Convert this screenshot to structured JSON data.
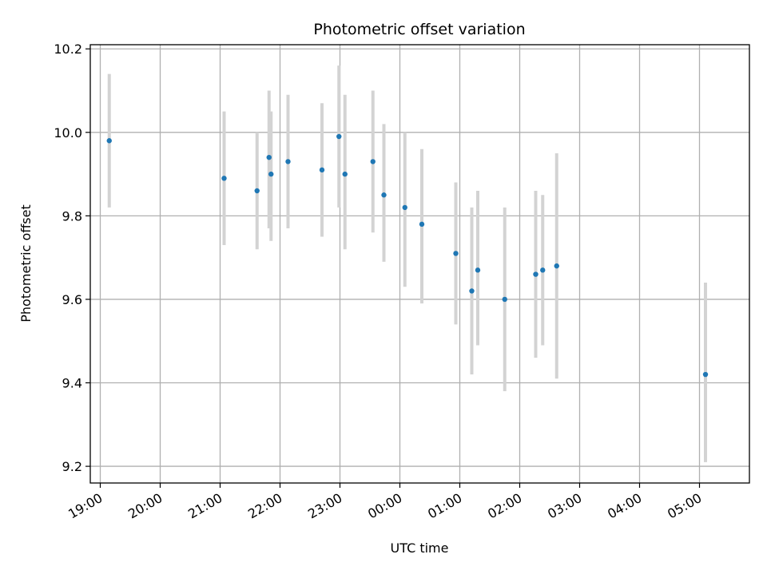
{
  "chart_data": {
    "type": "scatter",
    "title": "Photometric offset variation",
    "xlabel": "UTC time",
    "ylabel": "Photometric offset",
    "x_axis": {
      "kind": "time",
      "range": [
        "18:50",
        "05:50"
      ],
      "ticks": [
        "19:00",
        "20:00",
        "21:00",
        "22:00",
        "23:00",
        "00:00",
        "01:00",
        "02:00",
        "03:00",
        "04:00",
        "05:00"
      ]
    },
    "y_axis": {
      "range": [
        9.16,
        10.21
      ],
      "ticks": [
        "9.2",
        "9.4",
        "9.6",
        "9.8",
        "10.0",
        "10.2"
      ]
    },
    "grid": true,
    "colors": {
      "point": "#1f77b4",
      "errorbar": "#d3d3d3"
    },
    "series": [
      {
        "points": [
          {
            "x": "19:09",
            "y": 9.98,
            "yerr_low": 9.82,
            "yerr_high": 10.14
          },
          {
            "x": "21:04",
            "y": 9.89,
            "yerr_low": 9.73,
            "yerr_high": 10.05
          },
          {
            "x": "21:37",
            "y": 9.86,
            "yerr_low": 9.72,
            "yerr_high": 10.0
          },
          {
            "x": "21:49",
            "y": 9.94,
            "yerr_low": 9.77,
            "yerr_high": 10.1
          },
          {
            "x": "21:51",
            "y": 9.9,
            "yerr_low": 9.74,
            "yerr_high": 10.05
          },
          {
            "x": "22:08",
            "y": 9.93,
            "yerr_low": 9.77,
            "yerr_high": 10.09
          },
          {
            "x": "22:42",
            "y": 9.91,
            "yerr_low": 9.75,
            "yerr_high": 10.07
          },
          {
            "x": "22:59",
            "y": 9.99,
            "yerr_low": 9.82,
            "yerr_high": 10.16
          },
          {
            "x": "23:05",
            "y": 9.9,
            "yerr_low": 9.72,
            "yerr_high": 10.09
          },
          {
            "x": "23:33",
            "y": 9.93,
            "yerr_low": 9.76,
            "yerr_high": 10.1
          },
          {
            "x": "23:44",
            "y": 9.85,
            "yerr_low": 9.69,
            "yerr_high": 10.02
          },
          {
            "x": "00:05",
            "y": 9.82,
            "yerr_low": 9.63,
            "yerr_high": 10.0
          },
          {
            "x": "00:22",
            "y": 9.78,
            "yerr_low": 9.59,
            "yerr_high": 9.96
          },
          {
            "x": "00:56",
            "y": 9.71,
            "yerr_low": 9.54,
            "yerr_high": 9.88
          },
          {
            "x": "01:12",
            "y": 9.62,
            "yerr_low": 9.42,
            "yerr_high": 9.82
          },
          {
            "x": "01:18",
            "y": 9.67,
            "yerr_low": 9.49,
            "yerr_high": 9.86
          },
          {
            "x": "01:45",
            "y": 9.6,
            "yerr_low": 9.38,
            "yerr_high": 9.82
          },
          {
            "x": "02:16",
            "y": 9.66,
            "yerr_low": 9.46,
            "yerr_high": 9.86
          },
          {
            "x": "02:23",
            "y": 9.67,
            "yerr_low": 9.49,
            "yerr_high": 9.85
          },
          {
            "x": "02:37",
            "y": 9.68,
            "yerr_low": 9.41,
            "yerr_high": 9.95
          },
          {
            "x": "05:06",
            "y": 9.42,
            "yerr_low": 9.21,
            "yerr_high": 9.64
          }
        ]
      }
    ]
  }
}
